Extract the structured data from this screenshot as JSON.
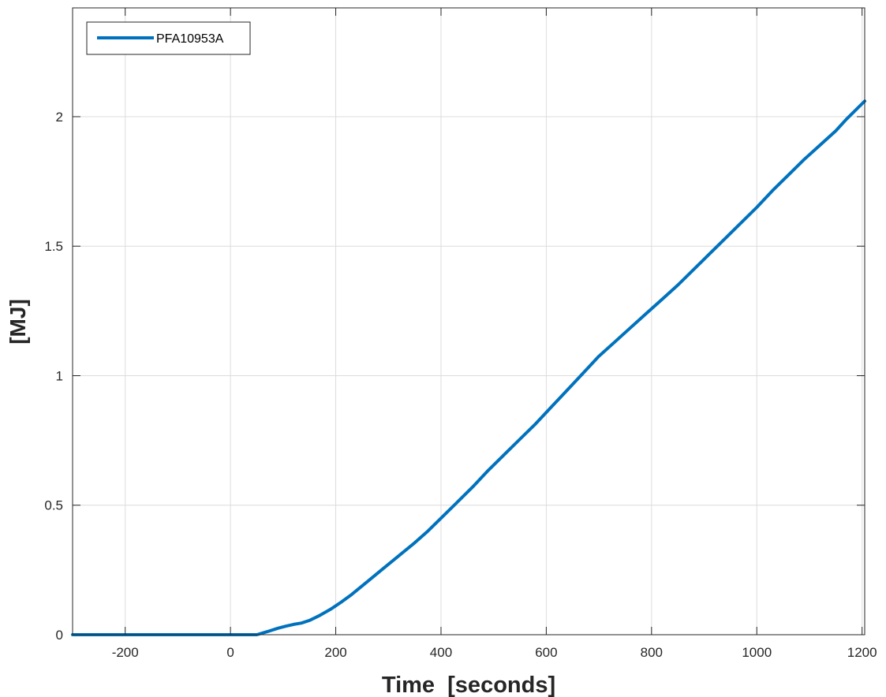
{
  "chart_data": {
    "type": "line",
    "title": "",
    "xlabel": "Time  [seconds]",
    "ylabel": "[MJ]",
    "xlim": [
      -300,
      1205
    ],
    "ylim": [
      0,
      2.42
    ],
    "x_ticks": [
      -200,
      0,
      200,
      400,
      600,
      800,
      1000,
      1200
    ],
    "y_ticks": [
      0,
      0.5,
      1,
      1.5,
      2
    ],
    "x_tick_labels": [
      "-200",
      "0",
      "200",
      "400",
      "600",
      "800",
      "1000",
      "1200"
    ],
    "y_tick_labels": [
      "0",
      "0.5",
      "1",
      "1.5",
      "2"
    ],
    "grid": true,
    "legend_position": "top-left",
    "colors": {
      "series": "#0072BD",
      "grid": "#dcdcdc",
      "axes": "#262626"
    },
    "series": [
      {
        "name": "PFA10953A",
        "x": [
          -300,
          -200,
          -100,
          0,
          50,
          70,
          90,
          105,
          120,
          135,
          150,
          170,
          190,
          210,
          230,
          260,
          290,
          320,
          350,
          375,
          400,
          430,
          460,
          490,
          520,
          550,
          580,
          610,
          640,
          670,
          700,
          730,
          760,
          790,
          820,
          850,
          880,
          910,
          940,
          970,
          1000,
          1030,
          1060,
          1090,
          1120,
          1150,
          1170,
          1185,
          1200,
          1205
        ],
        "y": [
          0,
          0,
          0,
          0,
          0,
          0.012,
          0.025,
          0.033,
          0.04,
          0.045,
          0.055,
          0.075,
          0.098,
          0.125,
          0.155,
          0.205,
          0.255,
          0.305,
          0.355,
          0.4,
          0.45,
          0.51,
          0.57,
          0.635,
          0.695,
          0.755,
          0.815,
          0.88,
          0.945,
          1.01,
          1.075,
          1.13,
          1.185,
          1.24,
          1.295,
          1.35,
          1.41,
          1.47,
          1.53,
          1.59,
          1.65,
          1.715,
          1.775,
          1.835,
          1.89,
          1.945,
          1.99,
          2.02,
          2.05,
          2.06
        ]
      }
    ]
  }
}
